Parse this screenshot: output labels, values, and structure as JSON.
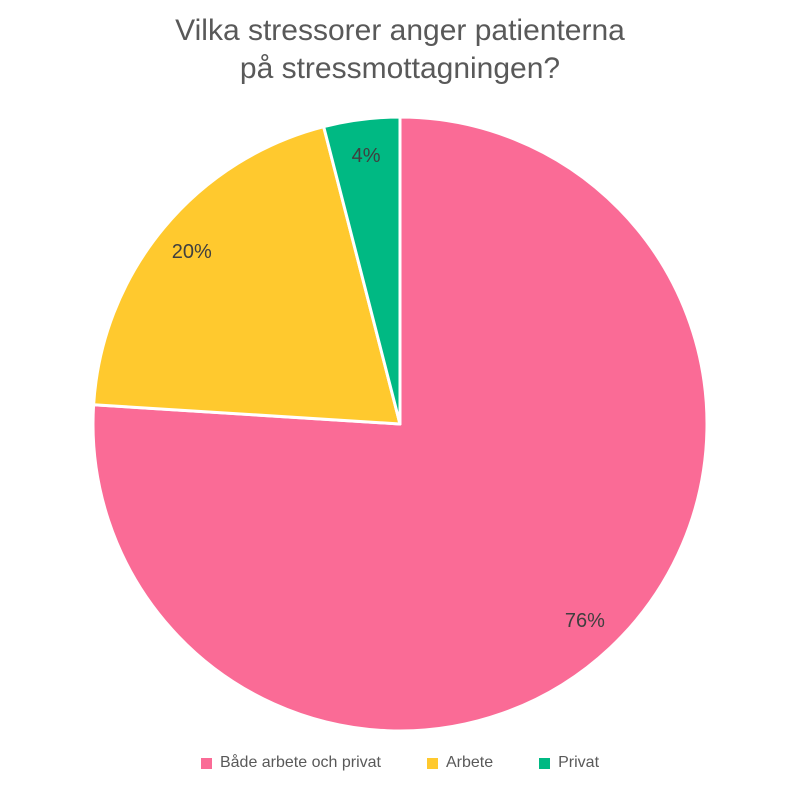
{
  "title": {
    "line1": "Vilka stressorer anger patienterna",
    "line2": "på stressmottagningen?"
  },
  "chart_data": {
    "type": "pie",
    "title": "Vilka stressorer anger patienterna på stressmottagningen?",
    "categories": [
      "Både arbete och privat",
      "Arbete",
      "Privat"
    ],
    "values": [
      76,
      20,
      4
    ],
    "labels": [
      "76%",
      "20%",
      "4%"
    ],
    "colors": [
      "#FA6B96",
      "#FFC92E",
      "#00B983"
    ],
    "start_angle_deg": 0,
    "direction": "clockwise",
    "slice_border_color": "#FFFFFF",
    "data_label_color": "#3F3F3F",
    "title_color": "#595959",
    "legend_text_color": "#595959",
    "legend_position": "bottom",
    "background_color": "#FFFFFF"
  }
}
